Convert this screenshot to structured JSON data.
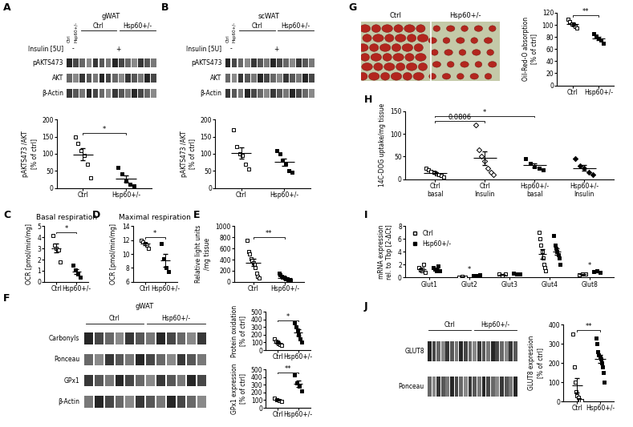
{
  "chart_data": [
    {
      "type": "dotplot",
      "ylabel": "pAKTS473 /AKT\n[% of ctrl]",
      "ylim": [
        0,
        200
      ],
      "yticks": [
        0,
        50,
        100,
        150,
        200
      ],
      "series": [
        {
          "name": "Ctrl",
          "marker": "open square",
          "values": [
            150,
            130,
            110,
            95,
            70,
            30
          ]
        },
        {
          "name": "Hsp60+/-",
          "marker": "filled square",
          "values": [
            60,
            40,
            20,
            10,
            5
          ]
        }
      ],
      "significance": [
        {
          "groups": [
            "Ctrl",
            "Hsp60+/-"
          ],
          "label": "*"
        }
      ]
    },
    {
      "type": "dotplot",
      "ylabel": "pAKTS473 /AKT\n[% of ctrl]",
      "ylim": [
        0,
        200
      ],
      "yticks": [
        0,
        50,
        100,
        150,
        200
      ],
      "series": [
        {
          "name": "Ctrl",
          "marker": "open square",
          "values": [
            170,
            120,
            100,
            95,
            70,
            55
          ]
        },
        {
          "name": "Hsp60+/-",
          "marker": "filled square",
          "values": [
            110,
            100,
            80,
            70,
            50,
            45
          ]
        }
      ],
      "significance": []
    },
    {
      "type": "dotplot",
      "panel_label": "C",
      "title": "Basal respiration",
      "ylabel": "OCR [pmol/min/mg]",
      "ylim": [
        0,
        5
      ],
      "yticks": [
        0,
        1,
        2,
        3,
        4,
        5
      ],
      "series": [
        {
          "name": "Ctrl",
          "marker": "open square",
          "values": [
            4.2,
            3.3,
            3.0,
            2.9,
            1.8
          ]
        },
        {
          "name": "Hsp60+/-",
          "marker": "filled square",
          "values": [
            1.5,
            1.1,
            0.7,
            0.4
          ]
        }
      ],
      "significance": [
        {
          "groups": [
            "Ctrl",
            "Hsp60+/-"
          ],
          "label": "*"
        }
      ]
    },
    {
      "type": "dotplot",
      "panel_label": "D",
      "title": "Maximal respiration",
      "ylabel": "OCR [pmol/min/mg]",
      "ylim": [
        6,
        14
      ],
      "yticks": [
        6,
        8,
        10,
        12,
        14
      ],
      "series": [
        {
          "name": "Ctrl",
          "marker": "open square",
          "values": [
            12.0,
            11.8,
            11.5,
            11.3,
            10.8
          ]
        },
        {
          "name": "Hsp60+/-",
          "marker": "filled square",
          "values": [
            11.5,
            9.3,
            8.0,
            7.5
          ]
        }
      ],
      "significance": [
        {
          "groups": [
            "Ctrl",
            "Hsp60+/-"
          ],
          "label": "*"
        }
      ]
    },
    {
      "type": "dotplot",
      "panel_label": "E",
      "ylabel": "Relative light units\n/mg tissue",
      "ylim": [
        0,
        1000
      ],
      "yticks": [
        0,
        200,
        400,
        600,
        800,
        1000
      ],
      "series": [
        {
          "name": "Ctrl",
          "marker": "open square",
          "values": [
            750,
            550,
            500,
            420,
            380,
            350,
            320,
            250,
            150,
            100,
            70
          ]
        },
        {
          "name": "Hsp60+/-",
          "marker": "filled square",
          "values": [
            150,
            120,
            100,
            90,
            80,
            70,
            60,
            50,
            40,
            40,
            30
          ]
        }
      ],
      "significance": [
        {
          "groups": [
            "Ctrl",
            "Hsp60+/-"
          ],
          "label": "**"
        }
      ]
    },
    {
      "type": "dotplot",
      "ylabel": "Protein oxidation\n[% of ctrl]",
      "ylim": [
        0,
        500
      ],
      "yticks": [
        0,
        100,
        200,
        300,
        400,
        500
      ],
      "series": [
        {
          "name": "Ctrl",
          "marker": "open square",
          "values": [
            150,
            120,
            100,
            80,
            70,
            60
          ]
        },
        {
          "name": "Hsp60+/-",
          "marker": "filled square",
          "values": [
            360,
            300,
            260,
            200,
            150,
            100
          ]
        }
      ],
      "significance": [
        {
          "groups": [
            "Ctrl",
            "Hsp60+/-"
          ],
          "label": "*"
        }
      ]
    },
    {
      "type": "dotplot",
      "ylabel": "GPx1 expression\n[% of ctrl]",
      "ylim": [
        0,
        500
      ],
      "yticks": [
        0,
        100,
        200,
        300,
        400,
        500
      ],
      "series": [
        {
          "name": "Ctrl",
          "marker": "open square",
          "values": [
            130,
            100,
            90,
            80
          ]
        },
        {
          "name": "Hsp60+/-",
          "marker": "filled square",
          "values": [
            430,
            320,
            280,
            220
          ]
        }
      ],
      "significance": [
        {
          "groups": [
            "Ctrl",
            "Hsp60+/-"
          ],
          "label": "**"
        }
      ]
    },
    {
      "type": "dotplot",
      "ylabel": "Oil-Red-O absorption\n[% of ctrl]",
      "ylim": [
        0,
        120
      ],
      "yticks": [
        0,
        20,
        40,
        60,
        80,
        100,
        120
      ],
      "series": [
        {
          "name": "Ctrl",
          "marker": "open square",
          "values": [
            110,
            105,
            102,
            100,
            97,
            95
          ]
        },
        {
          "name": "Hsp60+/-",
          "marker": "filled square",
          "values": [
            85,
            82,
            78,
            75,
            70
          ]
        }
      ],
      "significance": [
        {
          "groups": [
            "Ctrl",
            "Hsp60+/-"
          ],
          "label": "**"
        }
      ]
    },
    {
      "type": "dotplot",
      "panel_label": "H",
      "ylabel": "14C-DOG uptake/mg tissue",
      "ylim": [
        0,
        150
      ],
      "yticks": [
        0,
        50,
        100,
        150
      ],
      "series": [
        {
          "name": "Ctrl\nbasal",
          "marker": "open square",
          "values": [
            25,
            20,
            18,
            15,
            12,
            10,
            8,
            5
          ]
        },
        {
          "name": "Ctrl\nInsulin",
          "marker": "open diamond",
          "values": [
            120,
            65,
            50,
            40,
            25,
            15,
            10
          ]
        },
        {
          "name": "Hsp60+/-\nbasal",
          "marker": "filled square",
          "values": [
            45,
            35,
            28,
            25,
            20
          ]
        },
        {
          "name": "Hsp60+/-\nInsulin",
          "marker": "filled diamond",
          "values": [
            45,
            30,
            25,
            15,
            10
          ]
        }
      ],
      "significance": [
        {
          "groups": [
            "Ctrl\nbasal",
            "Ctrl\nInsulin"
          ],
          "label": "0.0806"
        },
        {
          "groups": [
            "Ctrl\nbasal",
            "Hsp60+/-\nbasal"
          ],
          "label": "*"
        }
      ]
    },
    {
      "type": "grouped_dotplot",
      "panel_label": "I",
      "ylabel": "mRNA expression\nrel. to Tbp [2-ΔCt]",
      "ylim": [
        0,
        8
      ],
      "yticks": [
        0,
        2,
        4,
        6,
        8
      ],
      "categories": [
        "Glut1",
        "Glut2",
        "Glut3",
        "Glut4",
        "Glut8"
      ],
      "legend": "upper left",
      "series": [
        {
          "name": "Ctrl",
          "marker": "open square",
          "values": [
            [
              1.5,
              1.2,
              1.0,
              2.0,
              0.8
            ],
            [
              0.1,
              0.15,
              0.1
            ],
            [
              0.5,
              0.3,
              0.6
            ],
            [
              7.0,
              6.0,
              5.0,
              4.0,
              3.0,
              2.0,
              1.5,
              1.0
            ],
            [
              0.4,
              0.5,
              0.6
            ]
          ]
        },
        {
          "name": "Hsp60+/-",
          "marker": "filled square",
          "values": [
            [
              1.5,
              1.3,
              1.0,
              1.8,
              1.1
            ],
            [
              0.3,
              0.35,
              0.4
            ],
            [
              0.7,
              0.5,
              0.6
            ],
            [
              6.5,
              5.0,
              4.5,
              4.0,
              3.5,
              3.0,
              2.0
            ],
            [
              0.9,
              1.0,
              0.8
            ]
          ]
        }
      ],
      "significance": [
        {
          "category": "Glut2",
          "label": "*"
        },
        {
          "category": "Glut8",
          "label": "*"
        }
      ]
    },
    {
      "type": "dotplot",
      "ylabel": "GLUT8 expression\n[% of ctrl]",
      "ylim": [
        0,
        400
      ],
      "yticks": [
        0,
        100,
        200,
        300,
        400
      ],
      "series": [
        {
          "name": "Ctrl",
          "marker": "open square",
          "values": [
            350,
            180,
            100,
            50,
            30,
            20,
            10,
            5,
            5
          ]
        },
        {
          "name": "Hsp60+/-",
          "marker": "filled square",
          "values": [
            330,
            300,
            260,
            240,
            230,
            220,
            200,
            180,
            150,
            100
          ]
        }
      ],
      "significance": [
        {
          "groups": [
            "Ctrl",
            "Hsp60+/-"
          ],
          "label": "**"
        }
      ]
    }
  ],
  "blots": [
    {
      "panel_label": "A",
      "title": "gWAT",
      "lane_labels": [
        "Ctrl",
        "Hsp60+/-"
      ],
      "groups": [
        "Ctrl",
        "Hsp60+/-"
      ],
      "treatment": {
        "label": "Insulin [5U]",
        "marks": [
          "-",
          "+"
        ]
      },
      "rows": [
        "pAKTS473",
        "AKT",
        "β-Actin"
      ]
    },
    {
      "panel_label": "B",
      "title": "scWAT",
      "lane_labels": [
        "Ctrl",
        "Hsp60+/-"
      ],
      "groups": [
        "Ctrl",
        "Hsp60+/-"
      ],
      "treatment": {
        "label": "Insulin [5U]",
        "marks": [
          "-",
          "+"
        ]
      },
      "rows": [
        "pAKTS473",
        "AKT",
        "β-Actin"
      ]
    },
    {
      "panel_label": "F",
      "title": "gWAT",
      "groups": [
        "Ctrl",
        "Hsp60+/-"
      ],
      "rows": [
        "Carbonyls",
        "Ponceau",
        "GPx1",
        "β-Actin"
      ]
    },
    {
      "panel_label": "J",
      "groups": [
        "Ctrl",
        "Hsp60+/-"
      ],
      "rows": [
        "GLUT8",
        "Ponceau"
      ]
    }
  ],
  "micrograph": {
    "panel_label": "G",
    "labels": [
      "Ctrl",
      "Hsp60+/-"
    ]
  }
}
